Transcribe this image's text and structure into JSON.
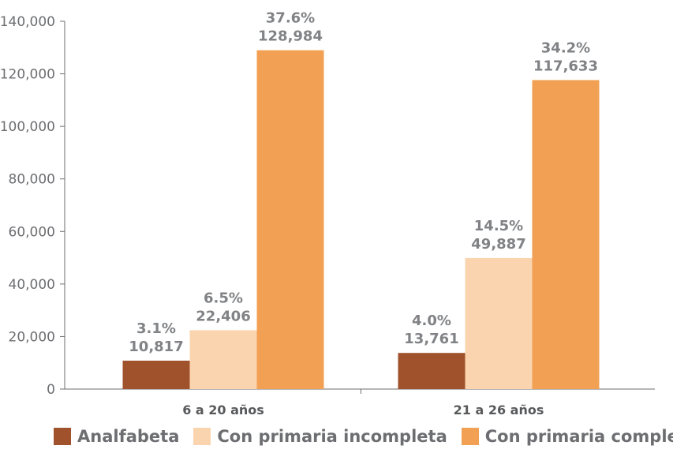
{
  "chart_data": {
    "type": "bar",
    "categories": [
      "6 a 20 años",
      "21 a 26 años"
    ],
    "series": [
      {
        "name": "Analfabeta",
        "values": [
          10817,
          13761
        ],
        "labels_pct": [
          "3.1%",
          "4.0%"
        ],
        "labels_val": [
          "10,817",
          "13,761"
        ],
        "color": "#a0522d"
      },
      {
        "name": "Con primaria incompleta",
        "values": [
          22406,
          49887
        ],
        "labels_pct": [
          "6.5%",
          "14.5%"
        ],
        "labels_val": [
          "22,406",
          "49,887"
        ],
        "color": "#fad4ae"
      },
      {
        "name": "Con primaria completa",
        "values": [
          128984,
          117633
        ],
        "labels_pct": [
          "37.6%",
          "34.2%"
        ],
        "labels_val": [
          "128,984",
          "117,633"
        ],
        "color": "#f2a154"
      }
    ],
    "yticks": [
      "0",
      "20,000",
      "40,000",
      "60,000",
      "80,000",
      "100,000",
      "120,000",
      "140,000"
    ],
    "ylim": [
      0,
      140000
    ],
    "grid": false,
    "legend": "bottom"
  }
}
